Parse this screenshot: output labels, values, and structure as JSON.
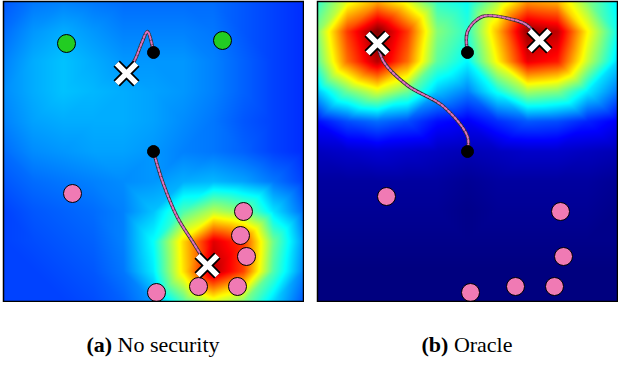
{
  "chart_data": [
    {
      "type": "heatmap_scatter",
      "title": "(a) No security",
      "xlim": [
        0,
        1
      ],
      "ylim": [
        0,
        1
      ],
      "tick_labels": false,
      "heat": {
        "x": [
          0,
          0.1,
          0.2,
          0.3,
          0.4,
          0.5,
          0.6,
          0.7,
          0.8,
          0.9,
          1
        ],
        "y": [
          1,
          0.9,
          0.8,
          0.7,
          0.6,
          0.5,
          0.4,
          0.3,
          0.2,
          0.1,
          0
        ],
        "values": [
          [
            0.22,
            0.25,
            0.26,
            0.25,
            0.24,
            0.24,
            0.24,
            0.24,
            0.22,
            0.2,
            0.18
          ],
          [
            0.24,
            0.28,
            0.3,
            0.28,
            0.26,
            0.26,
            0.26,
            0.25,
            0.22,
            0.2,
            0.18
          ],
          [
            0.26,
            0.3,
            0.32,
            0.3,
            0.28,
            0.28,
            0.28,
            0.26,
            0.23,
            0.2,
            0.18
          ],
          [
            0.27,
            0.3,
            0.32,
            0.31,
            0.3,
            0.29,
            0.28,
            0.26,
            0.23,
            0.2,
            0.18
          ],
          [
            0.26,
            0.29,
            0.3,
            0.3,
            0.3,
            0.29,
            0.27,
            0.25,
            0.22,
            0.2,
            0.18
          ],
          [
            0.24,
            0.27,
            0.28,
            0.29,
            0.29,
            0.28,
            0.26,
            0.25,
            0.23,
            0.2,
            0.18
          ],
          [
            0.22,
            0.24,
            0.25,
            0.26,
            0.27,
            0.28,
            0.3,
            0.31,
            0.29,
            0.25,
            0.2
          ],
          [
            0.2,
            0.22,
            0.23,
            0.24,
            0.26,
            0.32,
            0.45,
            0.55,
            0.5,
            0.35,
            0.24
          ],
          [
            0.2,
            0.21,
            0.22,
            0.23,
            0.26,
            0.38,
            0.65,
            0.88,
            0.8,
            0.48,
            0.28
          ],
          [
            0.2,
            0.2,
            0.21,
            0.22,
            0.25,
            0.36,
            0.64,
            0.92,
            0.79,
            0.45,
            0.26
          ],
          [
            0.2,
            0.2,
            0.2,
            0.21,
            0.23,
            0.28,
            0.45,
            0.58,
            0.5,
            0.34,
            0.22
          ]
        ]
      },
      "paths": [
        {
          "color": "#e070c0",
          "line_style": "dotted",
          "x": [
            0.5,
            0.48,
            0.46,
            0.44,
            0.41
          ],
          "y": [
            0.83,
            0.9,
            0.86,
            0.81,
            0.76
          ]
        },
        {
          "color": "#e070c0",
          "line_style": "dotted",
          "x": [
            0.5,
            0.53,
            0.58,
            0.63,
            0.68
          ],
          "y": [
            0.5,
            0.4,
            0.28,
            0.2,
            0.12
          ]
        }
      ],
      "series": [
        {
          "color": "#22cc22",
          "marker": "circle",
          "x": [
            0.21,
            0.73
          ],
          "y": [
            0.86,
            0.87
          ]
        },
        {
          "color": "#f07ab4",
          "marker": "circle",
          "x": [
            0.23,
            0.8,
            0.79,
            0.81,
            0.65,
            0.78,
            0.51
          ],
          "y": [
            0.36,
            0.3,
            0.22,
            0.15,
            0.05,
            0.05,
            0.03
          ]
        },
        {
          "color": "#000000",
          "marker": "point",
          "x": [
            0.5,
            0.5
          ],
          "y": [
            0.83,
            0.5
          ]
        },
        {
          "color": "#ffffff",
          "marker": "cross",
          "x": [
            0.41,
            0.68
          ],
          "y": [
            0.76,
            0.12
          ]
        }
      ]
    },
    {
      "type": "heatmap_scatter",
      "title": "(b) Oracle",
      "xlim": [
        0,
        1
      ],
      "ylim": [
        0,
        1
      ],
      "tick_labels": false,
      "heat": {
        "x": [
          0,
          0.1,
          0.2,
          0.3,
          0.4,
          0.5,
          0.6,
          0.7,
          0.8,
          0.9,
          1
        ],
        "y": [
          1,
          0.9,
          0.8,
          0.7,
          0.6,
          0.5,
          0.4,
          0.3,
          0.2,
          0.1,
          0
        ],
        "values": [
          [
            0.42,
            0.59,
            0.69,
            0.59,
            0.42,
            0.38,
            0.54,
            0.71,
            0.68,
            0.5,
            0.36
          ],
          [
            0.5,
            0.8,
            0.97,
            0.8,
            0.5,
            0.42,
            0.68,
            0.95,
            0.91,
            0.62,
            0.39
          ],
          [
            0.46,
            0.75,
            0.92,
            0.75,
            0.46,
            0.37,
            0.62,
            0.87,
            0.83,
            0.56,
            0.34
          ],
          [
            0.32,
            0.48,
            0.58,
            0.48,
            0.32,
            0.26,
            0.39,
            0.53,
            0.5,
            0.36,
            0.25
          ],
          [
            0.15,
            0.21,
            0.24,
            0.21,
            0.15,
            0.13,
            0.18,
            0.22,
            0.21,
            0.17,
            0.13
          ],
          [
            0.08,
            0.09,
            0.1,
            0.09,
            0.08,
            0.07,
            0.08,
            0.09,
            0.09,
            0.08,
            0.07
          ],
          [
            0.05,
            0.05,
            0.05,
            0.05,
            0.05,
            0.04,
            0.05,
            0.05,
            0.05,
            0.05,
            0.04
          ],
          [
            0.04,
            0.04,
            0.04,
            0.04,
            0.04,
            0.03,
            0.04,
            0.04,
            0.04,
            0.04,
            0.03
          ],
          [
            0.03,
            0.03,
            0.03,
            0.03,
            0.03,
            0.03,
            0.03,
            0.03,
            0.03,
            0.03,
            0.03
          ],
          [
            0.02,
            0.02,
            0.02,
            0.02,
            0.02,
            0.02,
            0.02,
            0.02,
            0.02,
            0.02,
            0.02
          ],
          [
            0.02,
            0.02,
            0.02,
            0.02,
            0.02,
            0.02,
            0.02,
            0.02,
            0.02,
            0.02,
            0.02
          ]
        ]
      },
      "paths": [
        {
          "color": "#e070c0",
          "line_style": "dotted",
          "x": [
            0.5,
            0.5,
            0.55,
            0.65,
            0.7,
            0.74
          ],
          "y": [
            0.83,
            0.9,
            0.95,
            0.94,
            0.92,
            0.87
          ]
        },
        {
          "color": "#e070c0",
          "line_style": "dotted",
          "x": [
            0.5,
            0.5,
            0.42,
            0.3,
            0.22,
            0.2
          ],
          "y": [
            0.5,
            0.55,
            0.65,
            0.72,
            0.8,
            0.86
          ]
        }
      ],
      "series": [
        {
          "color": "#f07ab4",
          "marker": "circle",
          "x": [
            0.23,
            0.81,
            0.82,
            0.51,
            0.66,
            0.79
          ],
          "y": [
            0.35,
            0.3,
            0.15,
            0.03,
            0.05,
            0.05
          ]
        },
        {
          "color": "#000000",
          "marker": "point",
          "x": [
            0.5,
            0.5
          ],
          "y": [
            0.83,
            0.5
          ]
        },
        {
          "color": "#ffffff",
          "marker": "cross",
          "x": [
            0.2,
            0.74
          ],
          "y": [
            0.86,
            0.87
          ]
        }
      ]
    }
  ]
}
